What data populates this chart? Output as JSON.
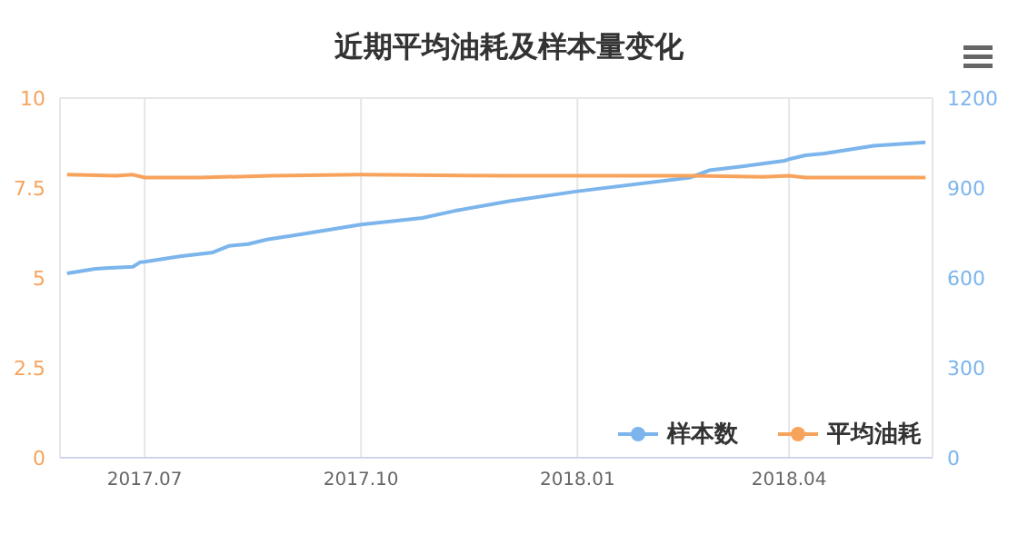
{
  "chart_data": {
    "type": "line",
    "title": "近期平均油耗及样本量变化",
    "xlim": [
      "2017-05-26",
      "2018-06-01"
    ],
    "xticks": [
      {
        "value": "2017-07-01",
        "label": "2017.07"
      },
      {
        "value": "2017-10-01",
        "label": "2017.10"
      },
      {
        "value": "2018-01-01",
        "label": "2018.01"
      },
      {
        "value": "2018-04-01",
        "label": "2018.04"
      }
    ],
    "ylim": [
      0,
      10
    ],
    "yticks": [
      0,
      2.5,
      5,
      7.5,
      10
    ],
    "y2lim": [
      0,
      1200
    ],
    "y2ticks": [
      0,
      300,
      600,
      900,
      1200
    ],
    "grid": true,
    "legend": "bottom right",
    "marker": "none",
    "line_style": "solid",
    "series": [
      {
        "name": "样本数",
        "color": "#7cb5ec",
        "axis": "y2",
        "x": [
          "2017-05-29",
          "2017-06-10",
          "2017-06-16",
          "2017-06-26",
          "2017-06-29",
          "2017-07-01",
          "2017-07-16",
          "2017-07-30",
          "2017-08-06",
          "2017-08-14",
          "2017-08-22",
          "2017-09-06",
          "2017-10-01",
          "2017-10-27",
          "2017-11-10",
          "2017-12-03",
          "2018-01-01",
          "2018-02-18",
          "2018-02-26",
          "2018-03-12",
          "2018-03-30",
          "2018-04-01",
          "2018-04-08",
          "2018-04-16",
          "2018-05-07",
          "2018-05-17",
          "2018-05-29"
        ],
        "values": [
          615,
          630,
          633,
          637,
          652,
          654,
          672,
          685,
          707,
          713,
          728,
          746,
          778,
          800,
          824,
          856,
          889,
          935,
          959,
          972,
          991,
          996,
          1009,
          1015,
          1041,
          1046,
          1052
        ]
      },
      {
        "name": "平均油耗",
        "color": "#f7a35c",
        "axis": "y",
        "x": [
          "2017-05-29",
          "2017-06-19",
          "2017-06-26",
          "2017-07-01",
          "2017-07-24",
          "2017-08-24",
          "2017-10-01",
          "2017-12-03",
          "2018-02-18",
          "2018-03-21",
          "2018-04-01",
          "2018-04-08",
          "2018-05-29"
        ],
        "values": [
          7.87,
          7.84,
          7.87,
          7.79,
          7.79,
          7.84,
          7.87,
          7.84,
          7.84,
          7.81,
          7.84,
          7.79,
          7.79
        ]
      }
    ]
  }
}
